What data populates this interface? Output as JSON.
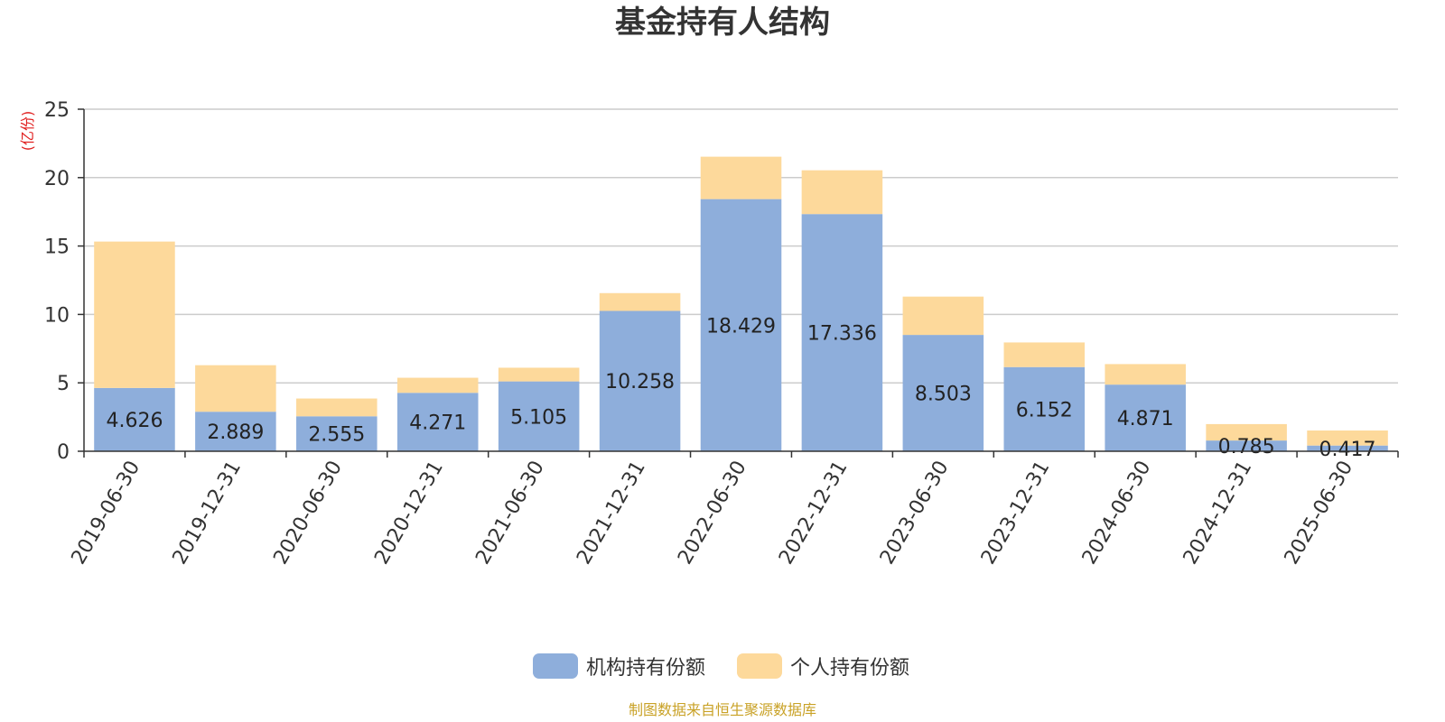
{
  "chart_data": {
    "type": "bar",
    "stacked": true,
    "title": "基金持有人结构",
    "ylabel": "(亿份)",
    "ylim": [
      0,
      25
    ],
    "yticks": [
      0,
      5,
      10,
      15,
      20,
      25
    ],
    "grid": true,
    "legend_position": "bottom",
    "categories": [
      "2019-06-30",
      "2019-12-31",
      "2020-06-30",
      "2020-12-31",
      "2021-06-30",
      "2021-12-31",
      "2022-06-30",
      "2022-12-31",
      "2023-06-30",
      "2023-12-31",
      "2024-06-30",
      "2024-12-31",
      "2025-06-30"
    ],
    "series": [
      {
        "name": "机构持有份额",
        "color": "#8eaedb",
        "values": [
          4.626,
          2.889,
          2.555,
          4.271,
          5.105,
          10.258,
          18.429,
          17.336,
          8.503,
          6.152,
          4.871,
          0.785,
          0.417
        ],
        "labels": [
          "4.626",
          "2.889",
          "2.555",
          "4.271",
          "5.105",
          "10.258",
          "18.429",
          "17.336",
          "8.503",
          "6.152",
          "4.871",
          "0.785",
          "0.417"
        ]
      },
      {
        "name": "个人持有份额",
        "color": "#fdd99b",
        "values": [
          10.7,
          3.4,
          1.3,
          1.1,
          1.0,
          1.3,
          3.1,
          3.2,
          2.8,
          1.8,
          1.5,
          1.2,
          1.1
        ]
      }
    ],
    "source": "制图数据来自恒生聚源数据库"
  }
}
